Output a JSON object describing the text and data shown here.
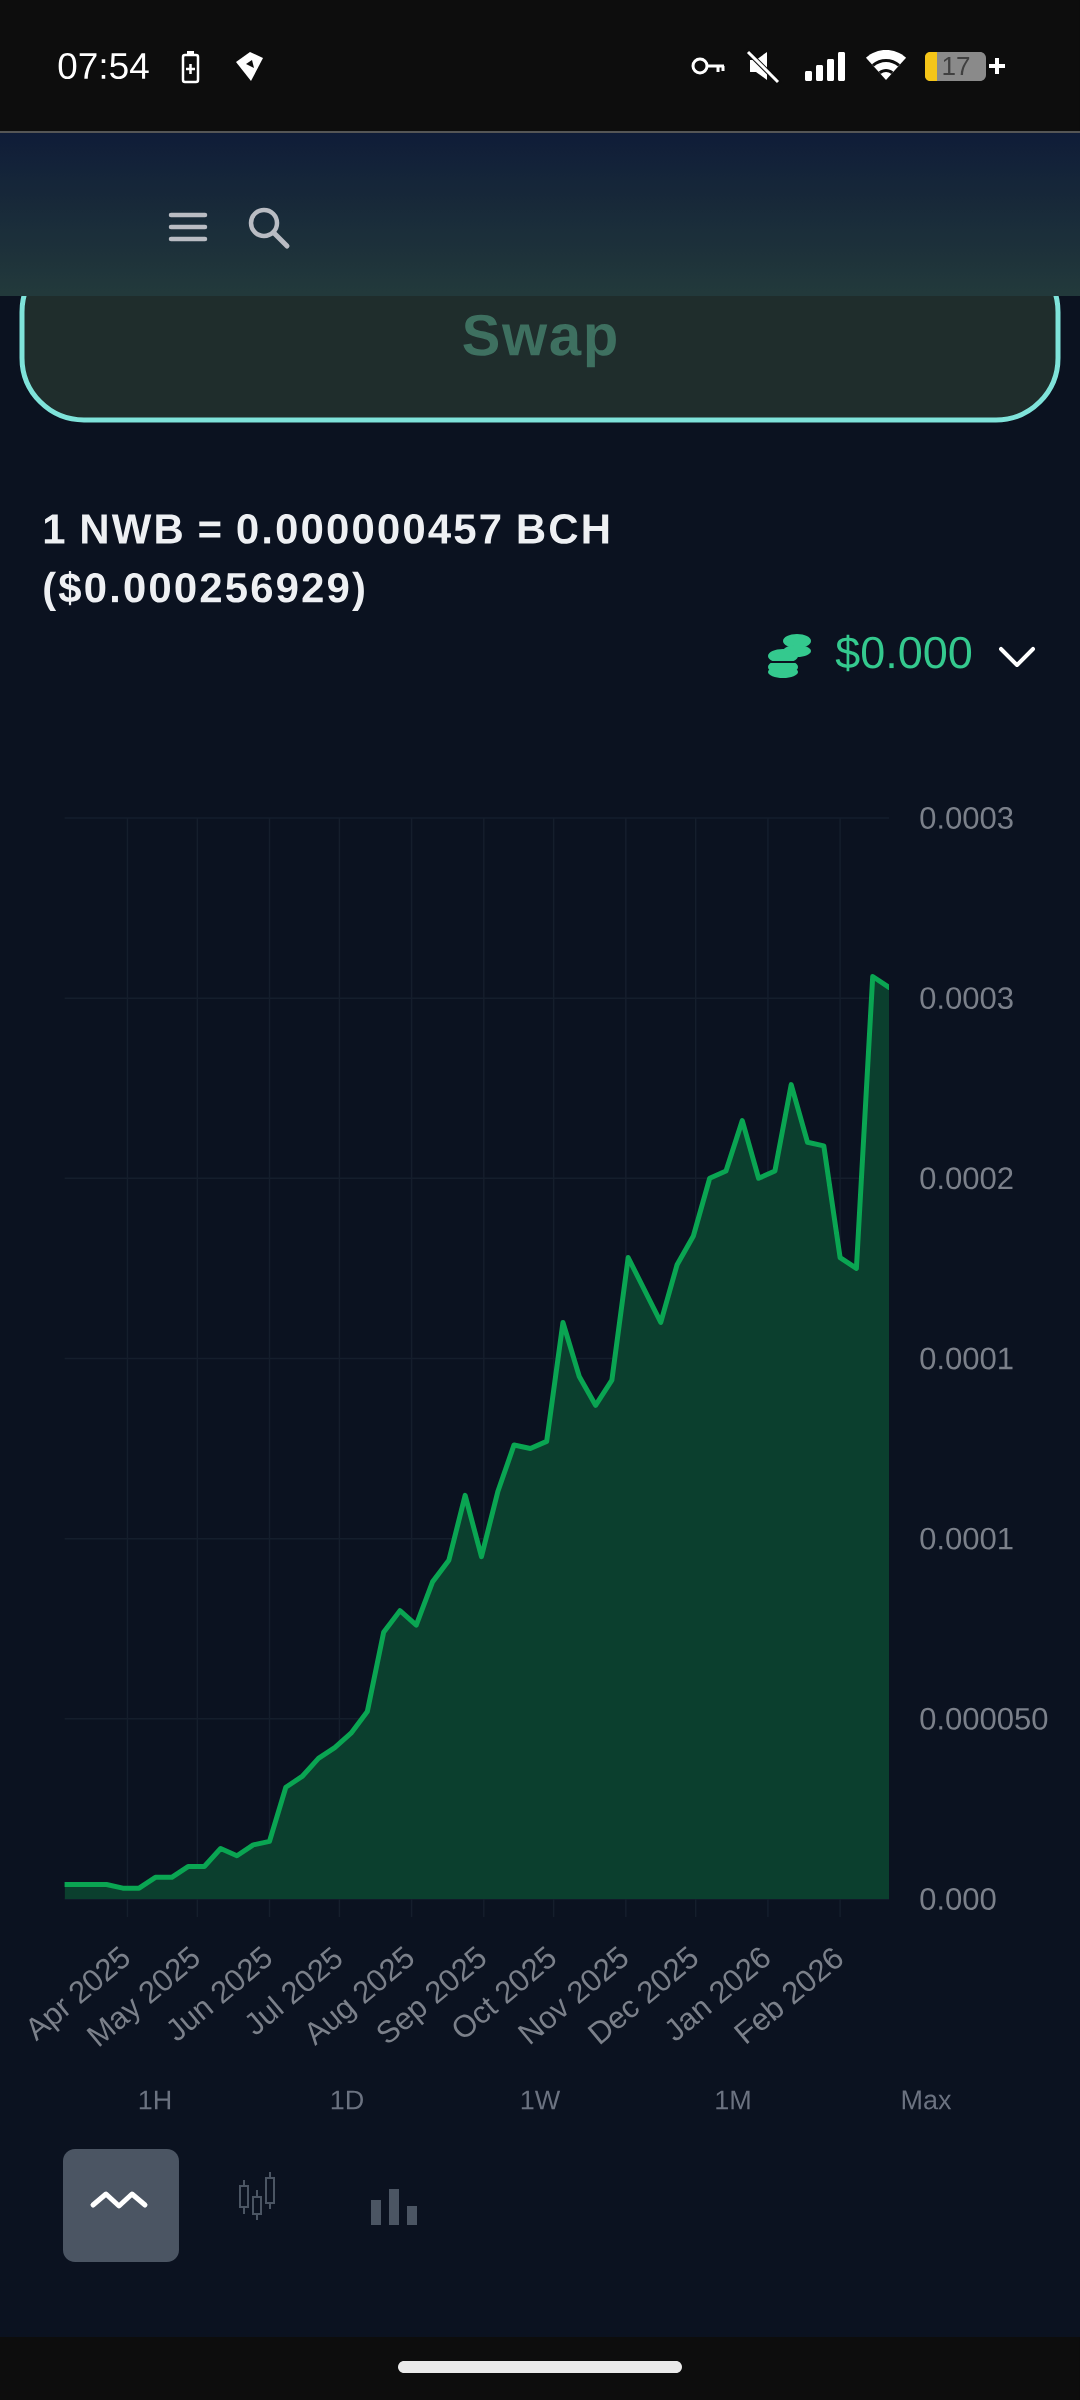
{
  "chart_data": {
    "type": "area",
    "title": "1 NWB = 0.000000457 BCH",
    "subtitle": "($0.000256929)",
    "x": [
      "2025-03-05",
      "2025-03-09",
      "2025-03-16",
      "2025-03-23",
      "2025-03-30",
      "2025-04-06",
      "2025-04-13",
      "2025-04-20",
      "2025-04-27",
      "2025-05-04",
      "2025-05-11",
      "2025-05-18",
      "2025-05-25",
      "2025-06-01",
      "2025-06-08",
      "2025-06-15",
      "2025-06-22",
      "2025-06-29",
      "2025-07-06",
      "2025-07-13",
      "2025-07-20",
      "2025-07-27",
      "2025-08-03",
      "2025-08-10",
      "2025-08-17",
      "2025-08-24",
      "2025-08-31",
      "2025-09-07",
      "2025-09-14",
      "2025-09-21",
      "2025-09-28",
      "2025-10-05",
      "2025-10-12",
      "2025-10-19",
      "2025-10-26",
      "2025-11-02",
      "2025-11-09",
      "2025-11-16",
      "2025-11-23",
      "2025-11-30",
      "2025-12-07",
      "2025-12-14",
      "2025-12-21",
      "2025-12-28",
      "2026-01-04",
      "2026-01-11",
      "2026-01-18",
      "2026-01-25",
      "2026-02-01",
      "2026-02-08",
      "2026-02-15",
      "2026-02-22"
    ],
    "values": [
      4e-06,
      4e-06,
      4e-06,
      4e-06,
      3e-06,
      3e-06,
      6e-06,
      6e-06,
      9e-06,
      9e-06,
      1.4e-05,
      1.2e-05,
      1.5e-05,
      1.6e-05,
      3.1e-05,
      3.4e-05,
      3.9e-05,
      4.2e-05,
      4.6e-05,
      5.2e-05,
      7.4e-05,
      8e-05,
      7.6e-05,
      8.8e-05,
      9.4e-05,
      0.000112,
      9.5e-05,
      0.000113,
      0.000126,
      0.000125,
      0.000127,
      0.00016,
      0.000145,
      0.000137,
      0.000144,
      0.000178,
      0.000169,
      0.00016,
      0.000176,
      0.000184,
      0.0002,
      0.000202,
      0.000216,
      0.0002,
      0.000202,
      0.000226,
      0.00021,
      0.000209,
      0.000178,
      0.000175,
      0.000256,
      0.000253
    ],
    "color": "#0aa552",
    "xlim": [
      "2025-03-05",
      "2026-02-22"
    ],
    "ylim": [
      -5e-06,
      0.0003
    ],
    "xticks": [
      {
        "value": "2025-04-01",
        "label": "Apr 2025"
      },
      {
        "value": "2025-05-01",
        "label": "May 2025"
      },
      {
        "value": "2025-06-01",
        "label": "Jun 2025"
      },
      {
        "value": "2025-07-01",
        "label": "Jul 2025"
      },
      {
        "value": "2025-08-01",
        "label": "Aug 2025"
      },
      {
        "value": "2025-09-01",
        "label": "Sep 2025"
      },
      {
        "value": "2025-10-01",
        "label": "Oct 2025"
      },
      {
        "value": "2025-11-01",
        "label": "Nov 2025"
      },
      {
        "value": "2025-12-01",
        "label": "Dec 2025"
      },
      {
        "value": "2026-01-01",
        "label": "Jan 2026"
      },
      {
        "value": "2026-02-01",
        "label": "Feb 2026"
      }
    ],
    "yticks": [
      {
        "value": 0,
        "label": "0.000"
      },
      {
        "value": 5e-05,
        "label": "0.000050"
      },
      {
        "value": 0.0001,
        "label": "0.0001"
      },
      {
        "value": 0.00015,
        "label": "0.0001"
      },
      {
        "value": 0.0002,
        "label": "0.0002"
      },
      {
        "value": 0.00025,
        "label": "0.0003"
      },
      {
        "value": 0.0003,
        "label": "0.0003"
      }
    ],
    "grid": true,
    "annotations": [
      "07:54",
      "17",
      "Swap",
      "$0.000",
      "1H",
      "1D",
      "1W",
      "1M",
      "Max"
    ]
  }
}
